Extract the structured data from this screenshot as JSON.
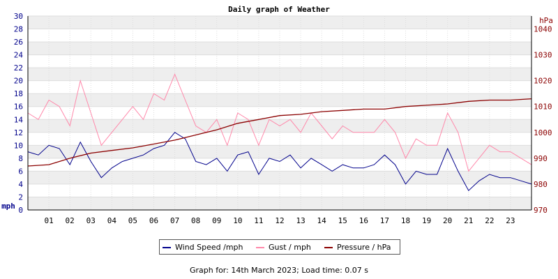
{
  "chart_data": {
    "type": "line",
    "title": "Daily graph of Weather",
    "left_axis": {
      "unit_label": "mph",
      "range": [
        0,
        30
      ],
      "ticks": [
        0,
        2,
        4,
        6,
        8,
        10,
        12,
        14,
        16,
        18,
        20,
        22,
        24,
        26,
        28,
        30
      ],
      "color": "#00008b"
    },
    "right_axis": {
      "unit_label": "hPa",
      "range": [
        970,
        1045
      ],
      "ticks": [
        970,
        980,
        990,
        1000,
        1010,
        1020,
        1030,
        1040
      ],
      "color": "#8b0000"
    },
    "x_axis": {
      "range_hours": [
        0,
        24
      ],
      "tick_labels": [
        "01",
        "02",
        "03",
        "04",
        "05",
        "06",
        "07",
        "08",
        "09",
        "10",
        "11",
        "12",
        "13",
        "14",
        "15",
        "16",
        "17",
        "18",
        "19",
        "20",
        "21",
        "22",
        "23"
      ]
    },
    "grid": true,
    "legend_position": "bottom",
    "series": [
      {
        "name": "Wind Speed /mph",
        "color": "#00008b",
        "axis": "left",
        "x": [
          0,
          0.5,
          1,
          1.5,
          2,
          2.5,
          3,
          3.5,
          4,
          4.5,
          5,
          5.5,
          6,
          6.5,
          7,
          7.5,
          8,
          8.5,
          9,
          9.5,
          10,
          10.5,
          11,
          11.5,
          12,
          12.5,
          13,
          13.5,
          14,
          14.5,
          15,
          15.5,
          16,
          16.5,
          17,
          17.5,
          18,
          18.5,
          19,
          19.5,
          20,
          20.5,
          21,
          21.5,
          22,
          22.5,
          23,
          23.5,
          24
        ],
        "values": [
          9,
          8.5,
          10,
          9.5,
          7,
          10.5,
          7.5,
          5,
          6.5,
          7.5,
          8,
          8.5,
          9.5,
          10,
          12,
          11,
          7.5,
          7,
          8,
          6,
          8.5,
          9,
          5.5,
          8,
          7.5,
          8.5,
          6.5,
          8,
          7,
          6,
          7,
          6.5,
          6.5,
          7,
          8.5,
          7,
          4,
          6,
          5.5,
          5.5,
          9.5,
          6,
          3,
          4.5,
          5.5,
          5,
          5,
          4.5,
          4
        ]
      },
      {
        "name": "Gust / mph",
        "color": "#ff88aa",
        "axis": "left",
        "x": [
          0,
          0.5,
          1,
          1.5,
          2,
          2.5,
          3,
          3.5,
          4,
          4.5,
          5,
          5.5,
          6,
          6.5,
          7,
          7.5,
          8,
          8.5,
          9,
          9.5,
          10,
          10.5,
          11,
          11.5,
          12,
          12.5,
          13,
          13.5,
          14,
          14.5,
          15,
          15.5,
          16,
          16.5,
          17,
          17.5,
          18,
          18.5,
          19,
          19.5,
          20,
          20.5,
          21,
          21.5,
          22,
          22.5,
          23,
          23.5,
          24
        ],
        "values": [
          15,
          14,
          17,
          16,
          13,
          20,
          15,
          10,
          12,
          14,
          16,
          14,
          18,
          17,
          21,
          17,
          13,
          12,
          14,
          10,
          15,
          14,
          10,
          14,
          13,
          14,
          12,
          15,
          13,
          11,
          13,
          12,
          12,
          12,
          14,
          12,
          8,
          11,
          10,
          10,
          15,
          12,
          6,
          8,
          10,
          9,
          9,
          8,
          7
        ]
      },
      {
        "name": "Pressure / hPa",
        "color": "#8b0000",
        "axis": "right",
        "x": [
          0,
          1,
          2,
          3,
          4,
          5,
          6,
          7,
          8,
          9,
          10,
          11,
          12,
          13,
          14,
          15,
          16,
          17,
          18,
          19,
          20,
          21,
          22,
          23,
          24
        ],
        "values": [
          987,
          987.5,
          990,
          992,
          993,
          994,
          995.5,
          997,
          999,
          1001,
          1003.5,
          1005,
          1006.5,
          1007,
          1008,
          1008.5,
          1009,
          1009,
          1010,
          1010.5,
          1011,
          1012,
          1012.5,
          1012.5,
          1013
        ]
      }
    ]
  },
  "legend": [
    {
      "label": "Wind Speed /mph",
      "color": "#00008b"
    },
    {
      "label": "Gust / mph",
      "color": "#ff88aa"
    },
    {
      "label": "Pressure / hPa",
      "color": "#8b0000"
    }
  ],
  "caption": "Graph for: 14th March 2023; Load time: 0.07 s"
}
